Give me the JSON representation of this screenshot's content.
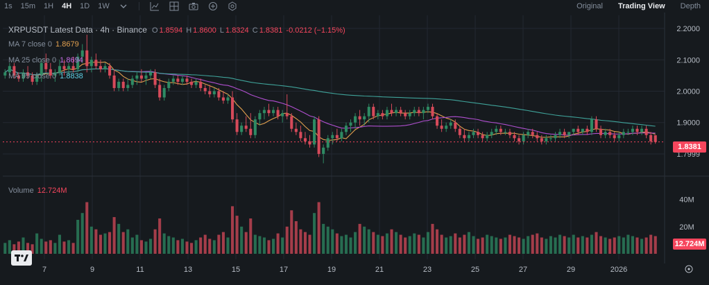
{
  "toolbar": {
    "timeframes": [
      "1s",
      "15m",
      "1H",
      "4H",
      "1D",
      "1W"
    ],
    "active_timeframe": "4H",
    "dropdown_icon": "chevron-down-icon",
    "tools": [
      "indicators-icon",
      "layout-icon",
      "camera-icon",
      "add-icon",
      "settings-icon"
    ],
    "views": [
      "Original",
      "Trading View",
      "Depth"
    ],
    "active_view": "Trading View"
  },
  "legend": {
    "title": "XRPUSDT Latest Data · 4h · Binance",
    "o_label": "O",
    "o_value": "1.8594",
    "h_label": "H",
    "h_value": "1.8600",
    "l_label": "L",
    "l_value": "1.8324",
    "c_label": "C",
    "c_value": "1.8381",
    "change": "-0.0212 (−1.15%)",
    "ma7_label": "MA 7 close 0",
    "ma7_value": "1.8679",
    "ma25_label": "MA 25 close 0",
    "ma25_value": "1.8694",
    "ma99_label": "MA 99 close 0",
    "ma99_value": "1.8838",
    "volume_label": "Volume",
    "volume_value": "12.724M"
  },
  "price_axis": {
    "ticks": [
      "2.2000",
      "2.1000",
      "2.0000",
      "1.9000",
      "1.7999"
    ],
    "current_price": "1.8381"
  },
  "volume_axis": {
    "ticks": [
      "40M",
      "20M"
    ],
    "current_volume": "12.724M"
  },
  "time_axis": {
    "labels": [
      "7",
      "9",
      "11",
      "13",
      "15",
      "17",
      "19",
      "21",
      "23",
      "25",
      "27",
      "29",
      "2026"
    ]
  },
  "colors": {
    "up": "#2e8a63",
    "down": "#d64a5a",
    "ma7": "#e2a04f",
    "ma25": "#b04fd0",
    "ma99": "#3fa39a",
    "bg": "#161a1e",
    "grid": "#232831",
    "price_label_bg": "#f6465d"
  },
  "chart_data": {
    "type": "candlestick",
    "symbol": "XRPUSDT",
    "interval": "4h",
    "series": [
      {
        "name": "XRPUSDT",
        "ohlc": [
          [
            2.05,
            2.07,
            2.04,
            2.06
          ],
          [
            2.06,
            2.09,
            2.05,
            2.08
          ],
          [
            2.08,
            2.09,
            2.04,
            2.05
          ],
          [
            2.05,
            2.06,
            2.03,
            2.04
          ],
          [
            2.04,
            2.07,
            2.03,
            2.06
          ],
          [
            2.06,
            2.08,
            2.04,
            2.05
          ],
          [
            2.05,
            2.06,
            2.02,
            2.03
          ],
          [
            2.03,
            2.06,
            2.02,
            2.05
          ],
          [
            2.05,
            2.1,
            2.03,
            2.09
          ],
          [
            2.09,
            2.12,
            2.06,
            2.07
          ],
          [
            2.07,
            2.09,
            2.04,
            2.05
          ],
          [
            2.05,
            2.07,
            2.03,
            2.06
          ],
          [
            2.06,
            2.1,
            2.05,
            2.08
          ],
          [
            2.08,
            2.1,
            2.05,
            2.07
          ],
          [
            2.07,
            2.09,
            2.05,
            2.08
          ],
          [
            2.08,
            2.11,
            2.06,
            2.07
          ],
          [
            2.07,
            2.12,
            2.06,
            2.11
          ],
          [
            2.11,
            2.15,
            2.09,
            2.13
          ],
          [
            2.13,
            2.18,
            2.06,
            2.08
          ],
          [
            2.08,
            2.11,
            2.06,
            2.1
          ],
          [
            2.1,
            2.12,
            2.07,
            2.08
          ],
          [
            2.08,
            2.1,
            2.06,
            2.07
          ],
          [
            2.07,
            2.09,
            2.06,
            2.08
          ],
          [
            2.08,
            2.09,
            2.04,
            2.05
          ],
          [
            2.05,
            2.07,
            2.0,
            2.01
          ],
          [
            2.01,
            2.04,
            2.0,
            2.03
          ],
          [
            2.03,
            2.04,
            2.0,
            2.01
          ],
          [
            2.01,
            2.04,
            2.0,
            2.02
          ],
          [
            2.02,
            2.05,
            2.01,
            2.04
          ],
          [
            2.04,
            2.06,
            2.02,
            2.05
          ],
          [
            2.05,
            2.07,
            2.03,
            2.04
          ],
          [
            2.04,
            2.06,
            2.02,
            2.05
          ],
          [
            2.05,
            2.07,
            2.04,
            2.06
          ],
          [
            2.06,
            2.07,
            2.01,
            2.02
          ],
          [
            2.02,
            2.04,
            1.97,
            1.98
          ],
          [
            1.98,
            2.02,
            1.97,
            2.01
          ],
          [
            2.01,
            2.04,
            2.0,
            2.03
          ],
          [
            2.03,
            2.05,
            2.02,
            2.04
          ],
          [
            2.04,
            2.05,
            2.02,
            2.03
          ],
          [
            2.03,
            2.05,
            2.02,
            2.04
          ],
          [
            2.04,
            2.05,
            2.02,
            2.03
          ],
          [
            2.03,
            2.04,
            2.01,
            2.02
          ],
          [
            2.02,
            2.04,
            2.01,
            2.03
          ],
          [
            2.03,
            2.04,
            2.0,
            2.01
          ],
          [
            2.01,
            2.02,
            1.99,
            2.0
          ],
          [
            2.0,
            2.02,
            1.98,
            1.99
          ],
          [
            1.99,
            2.01,
            1.98,
            2.0
          ],
          [
            2.0,
            2.01,
            1.97,
            1.98
          ],
          [
            1.98,
            2.0,
            1.96,
            1.97
          ],
          [
            1.97,
            1.99,
            1.96,
            1.98
          ],
          [
            1.98,
            2.0,
            1.9,
            1.91
          ],
          [
            1.91,
            1.93,
            1.86,
            1.87
          ],
          [
            1.87,
            1.9,
            1.86,
            1.89
          ],
          [
            1.89,
            1.92,
            1.87,
            1.88
          ],
          [
            1.88,
            1.93,
            1.85,
            1.86
          ],
          [
            1.86,
            1.92,
            1.85,
            1.91
          ],
          [
            1.91,
            1.94,
            1.89,
            1.93
          ],
          [
            1.93,
            1.95,
            1.91,
            1.94
          ],
          [
            1.94,
            1.96,
            1.92,
            1.93
          ],
          [
            1.93,
            1.95,
            1.92,
            1.94
          ],
          [
            1.94,
            1.95,
            1.91,
            1.92
          ],
          [
            1.92,
            1.94,
            1.9,
            1.93
          ],
          [
            1.93,
            1.99,
            1.91,
            1.92
          ],
          [
            1.92,
            1.93,
            1.87,
            1.88
          ],
          [
            1.88,
            1.9,
            1.86,
            1.87
          ],
          [
            1.87,
            1.89,
            1.84,
            1.85
          ],
          [
            1.85,
            1.87,
            1.83,
            1.84
          ],
          [
            1.84,
            1.86,
            1.82,
            1.83
          ],
          [
            1.83,
            1.92,
            1.82,
            1.91
          ],
          [
            1.91,
            1.92,
            1.79,
            1.8
          ],
          [
            1.8,
            1.83,
            1.77,
            1.82
          ],
          [
            1.82,
            1.86,
            1.81,
            1.85
          ],
          [
            1.85,
            1.87,
            1.83,
            1.86
          ],
          [
            1.86,
            1.88,
            1.84,
            1.85
          ],
          [
            1.85,
            1.88,
            1.84,
            1.87
          ],
          [
            1.87,
            1.9,
            1.86,
            1.89
          ],
          [
            1.89,
            1.91,
            1.87,
            1.9
          ],
          [
            1.9,
            1.93,
            1.88,
            1.92
          ],
          [
            1.92,
            1.94,
            1.89,
            1.91
          ],
          [
            1.91,
            1.93,
            1.89,
            1.92
          ],
          [
            1.92,
            1.96,
            1.9,
            1.95
          ],
          [
            1.95,
            1.96,
            1.91,
            1.92
          ],
          [
            1.92,
            1.94,
            1.91,
            1.93
          ],
          [
            1.93,
            1.94,
            1.91,
            1.92
          ],
          [
            1.92,
            1.95,
            1.91,
            1.94
          ],
          [
            1.94,
            1.96,
            1.92,
            1.93
          ],
          [
            1.93,
            1.95,
            1.92,
            1.94
          ],
          [
            1.94,
            1.95,
            1.92,
            1.93
          ],
          [
            1.93,
            1.94,
            1.91,
            1.92
          ],
          [
            1.92,
            1.94,
            1.91,
            1.93
          ],
          [
            1.93,
            1.95,
            1.92,
            1.94
          ],
          [
            1.94,
            1.95,
            1.92,
            1.93
          ],
          [
            1.93,
            1.95,
            1.91,
            1.94
          ],
          [
            1.94,
            1.96,
            1.93,
            1.95
          ],
          [
            1.95,
            1.96,
            1.91,
            1.92
          ],
          [
            1.92,
            1.93,
            1.88,
            1.89
          ],
          [
            1.89,
            1.91,
            1.87,
            1.88
          ],
          [
            1.88,
            1.9,
            1.87,
            1.89
          ],
          [
            1.89,
            1.91,
            1.88,
            1.9
          ],
          [
            1.9,
            1.91,
            1.87,
            1.88
          ],
          [
            1.88,
            1.89,
            1.85,
            1.86
          ],
          [
            1.86,
            1.88,
            1.84,
            1.85
          ],
          [
            1.85,
            1.87,
            1.84,
            1.86
          ],
          [
            1.86,
            1.88,
            1.85,
            1.87
          ],
          [
            1.87,
            1.88,
            1.85,
            1.86
          ],
          [
            1.86,
            1.87,
            1.84,
            1.85
          ],
          [
            1.85,
            1.87,
            1.84,
            1.86
          ],
          [
            1.86,
            1.88,
            1.85,
            1.87
          ],
          [
            1.87,
            1.89,
            1.86,
            1.88
          ],
          [
            1.88,
            1.89,
            1.86,
            1.87
          ],
          [
            1.87,
            1.88,
            1.86,
            1.87
          ],
          [
            1.87,
            1.88,
            1.85,
            1.86
          ],
          [
            1.86,
            1.87,
            1.84,
            1.85
          ],
          [
            1.85,
            1.86,
            1.83,
            1.84
          ],
          [
            1.84,
            1.87,
            1.83,
            1.86
          ],
          [
            1.86,
            1.88,
            1.85,
            1.87
          ],
          [
            1.87,
            1.88,
            1.85,
            1.86
          ],
          [
            1.86,
            1.87,
            1.84,
            1.85
          ],
          [
            1.85,
            1.86,
            1.83,
            1.84
          ],
          [
            1.84,
            1.86,
            1.83,
            1.85
          ],
          [
            1.85,
            1.86,
            1.84,
            1.85
          ],
          [
            1.85,
            1.87,
            1.84,
            1.86
          ],
          [
            1.86,
            1.88,
            1.85,
            1.87
          ],
          [
            1.87,
            1.88,
            1.85,
            1.86
          ],
          [
            1.86,
            1.87,
            1.85,
            1.87
          ],
          [
            1.87,
            1.88,
            1.86,
            1.88
          ],
          [
            1.88,
            1.89,
            1.86,
            1.87
          ],
          [
            1.87,
            1.88,
            1.86,
            1.88
          ],
          [
            1.88,
            1.89,
            1.86,
            1.87
          ],
          [
            1.87,
            1.92,
            1.86,
            1.91
          ],
          [
            1.91,
            1.92,
            1.87,
            1.88
          ],
          [
            1.88,
            1.89,
            1.85,
            1.86
          ],
          [
            1.86,
            1.88,
            1.85,
            1.87
          ],
          [
            1.87,
            1.88,
            1.85,
            1.86
          ],
          [
            1.86,
            1.87,
            1.84,
            1.85
          ],
          [
            1.85,
            1.87,
            1.84,
            1.86
          ],
          [
            1.86,
            1.88,
            1.85,
            1.87
          ],
          [
            1.87,
            1.88,
            1.86,
            1.87
          ],
          [
            1.87,
            1.89,
            1.86,
            1.88
          ],
          [
            1.88,
            1.89,
            1.86,
            1.87
          ],
          [
            1.87,
            1.89,
            1.86,
            1.88
          ],
          [
            1.88,
            1.89,
            1.85,
            1.86
          ],
          [
            1.86,
            1.87,
            1.83,
            1.84
          ],
          [
            1.8594,
            1.86,
            1.8324,
            1.8381
          ]
        ]
      }
    ],
    "volume": [
      8,
      10,
      7,
      9,
      12,
      8,
      7,
      15,
      11,
      9,
      10,
      8,
      14,
      9,
      10,
      8,
      25,
      30,
      38,
      20,
      18,
      14,
      15,
      16,
      27,
      22,
      16,
      18,
      12,
      14,
      10,
      9,
      11,
      18,
      26,
      15,
      13,
      12,
      10,
      11,
      9,
      8,
      10,
      12,
      14,
      11,
      10,
      14,
      16,
      12,
      35,
      28,
      20,
      16,
      26,
      14,
      13,
      12,
      10,
      11,
      15,
      12,
      20,
      32,
      24,
      18,
      16,
      14,
      30,
      38,
      22,
      20,
      18,
      15,
      13,
      14,
      12,
      16,
      22,
      20,
      18,
      16,
      14,
      13,
      15,
      18,
      16,
      14,
      12,
      13,
      15,
      14,
      12,
      16,
      22,
      18,
      14,
      12,
      13,
      15,
      12,
      14,
      16,
      13,
      11,
      12,
      14,
      13,
      12,
      11,
      12,
      14,
      13,
      12,
      11,
      13,
      14,
      15,
      12,
      11,
      13,
      12,
      14,
      13,
      12,
      14,
      12,
      13,
      12,
      14,
      16,
      13,
      12,
      11,
      12,
      13,
      12,
      14,
      13,
      12,
      11,
      12,
      14,
      13
    ],
    "ma": [
      {
        "name": "MA 7 close 0",
        "period": 7
      },
      {
        "name": "MA 25 close 0",
        "period": 25
      },
      {
        "name": "MA 99 close 0",
        "period": 99
      }
    ],
    "price_range": [
      1.76,
      2.22
    ],
    "volume_range": [
      0,
      50
    ],
    "grid": true
  }
}
